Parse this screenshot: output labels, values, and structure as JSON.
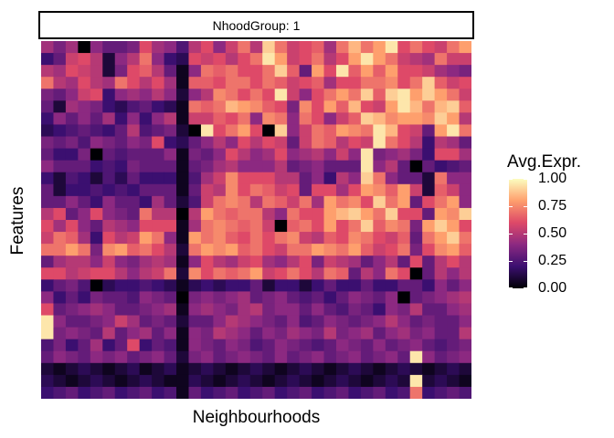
{
  "chart_data": {
    "type": "heatmap",
    "facet_label": "NhoodGroup: 1",
    "xlabel": "Neighbourhoods",
    "ylabel": "Features",
    "legend": {
      "title": "Avg.Expr.",
      "placement": "right",
      "ticks": [
        "0.00",
        "0.25",
        "0.50",
        "0.75",
        "1.00"
      ],
      "tick_values": [
        0.0,
        0.25,
        0.5,
        0.75,
        1.0
      ],
      "range": [
        0,
        1
      ]
    },
    "colorscale": [
      "#000004",
      "#3b0f70",
      "#8c2981",
      "#de4968",
      "#fe9f6d",
      "#fcfdbf"
    ],
    "n_rows": 30,
    "n_cols": 35,
    "values": [
      [
        0.45,
        0.35,
        0.45,
        0.0,
        0.4,
        0.3,
        0.3,
        0.35,
        0.6,
        0.45,
        0.4,
        0.25,
        0.5,
        0.6,
        0.4,
        0.55,
        0.7,
        0.5,
        0.9,
        0.7,
        0.55,
        0.6,
        0.65,
        0.45,
        0.7,
        0.85,
        0.7,
        0.8,
        0.95,
        0.6,
        0.7,
        0.6,
        0.55,
        0.7,
        0.8
      ],
      [
        0.2,
        0.3,
        0.55,
        0.6,
        0.5,
        0.1,
        0.4,
        0.5,
        0.7,
        0.4,
        0.2,
        0.15,
        0.6,
        0.55,
        0.6,
        0.5,
        0.6,
        0.7,
        0.95,
        0.8,
        0.55,
        0.6,
        0.7,
        0.5,
        0.6,
        0.8,
        0.95,
        0.8,
        0.7,
        0.55,
        0.5,
        0.45,
        0.7,
        0.55,
        0.55
      ],
      [
        0.5,
        0.45,
        0.6,
        0.55,
        0.5,
        0.1,
        0.35,
        0.6,
        0.65,
        0.5,
        0.3,
        0.05,
        0.4,
        0.7,
        0.65,
        0.7,
        0.6,
        0.6,
        0.7,
        0.9,
        0.65,
        0.3,
        0.8,
        0.6,
        0.95,
        0.65,
        0.8,
        0.65,
        0.8,
        0.6,
        0.6,
        0.55,
        0.45,
        0.4,
        0.35
      ],
      [
        0.7,
        0.5,
        0.45,
        0.6,
        0.5,
        0.45,
        0.7,
        0.6,
        0.5,
        0.6,
        0.45,
        0.05,
        0.65,
        0.65,
        0.6,
        0.7,
        0.7,
        0.6,
        0.7,
        0.65,
        0.55,
        0.6,
        0.65,
        0.45,
        0.6,
        0.6,
        0.7,
        0.7,
        0.75,
        0.6,
        0.7,
        0.9,
        0.65,
        0.55,
        0.6
      ],
      [
        0.35,
        0.3,
        0.4,
        0.55,
        0.6,
        0.2,
        0.4,
        0.45,
        0.4,
        0.5,
        0.4,
        0.1,
        0.4,
        0.5,
        0.75,
        0.7,
        0.6,
        0.7,
        0.6,
        0.95,
        0.55,
        0.4,
        0.6,
        0.7,
        0.8,
        0.7,
        0.9,
        0.65,
        0.9,
        0.95,
        0.8,
        0.9,
        0.8,
        0.7,
        0.55
      ],
      [
        0.3,
        0.1,
        0.45,
        0.4,
        0.35,
        0.2,
        0.15,
        0.25,
        0.3,
        0.2,
        0.15,
        0.05,
        0.7,
        0.65,
        0.7,
        0.85,
        0.8,
        0.75,
        0.65,
        0.6,
        0.35,
        0.75,
        0.6,
        0.8,
        0.65,
        0.85,
        0.6,
        0.55,
        0.8,
        0.95,
        0.85,
        0.7,
        0.85,
        0.9,
        0.65
      ],
      [
        0.2,
        0.4,
        0.3,
        0.4,
        0.3,
        0.45,
        0.2,
        0.4,
        0.2,
        0.4,
        0.5,
        0.05,
        0.55,
        0.55,
        0.65,
        0.6,
        0.7,
        0.4,
        0.75,
        0.7,
        0.4,
        0.7,
        0.6,
        0.4,
        0.55,
        0.65,
        0.9,
        0.85,
        0.75,
        0.8,
        0.8,
        0.75,
        0.9,
        0.8,
        0.5
      ],
      [
        0.15,
        0.2,
        0.25,
        0.3,
        0.25,
        0.2,
        0.3,
        0.5,
        0.25,
        0.3,
        0.35,
        0.1,
        0.0,
        0.95,
        0.6,
        0.7,
        0.8,
        0.6,
        0.0,
        0.9,
        0.4,
        0.55,
        0.7,
        0.65,
        0.8,
        0.75,
        0.7,
        0.95,
        0.85,
        0.6,
        0.55,
        0.3,
        0.8,
        0.95,
        0.7
      ],
      [
        0.35,
        0.3,
        0.35,
        0.25,
        0.4,
        0.35,
        0.3,
        0.4,
        0.35,
        0.6,
        0.2,
        0.15,
        0.3,
        0.4,
        0.5,
        0.4,
        0.6,
        0.5,
        0.6,
        0.55,
        0.3,
        0.55,
        0.7,
        0.65,
        0.5,
        0.6,
        0.55,
        0.95,
        0.7,
        0.6,
        0.5,
        0.2,
        0.5,
        0.45,
        0.3
      ],
      [
        0.3,
        0.2,
        0.2,
        0.35,
        0.0,
        0.3,
        0.25,
        0.3,
        0.3,
        0.3,
        0.4,
        0.05,
        0.35,
        0.3,
        0.4,
        0.6,
        0.5,
        0.4,
        0.45,
        0.6,
        0.4,
        0.45,
        0.5,
        0.4,
        0.55,
        0.4,
        0.95,
        0.35,
        0.4,
        0.45,
        0.35,
        0.2,
        0.6,
        0.6,
        0.45
      ],
      [
        0.4,
        0.3,
        0.3,
        0.3,
        0.2,
        0.25,
        0.2,
        0.35,
        0.3,
        0.3,
        0.3,
        0.05,
        0.3,
        0.35,
        0.45,
        0.5,
        0.4,
        0.4,
        0.4,
        0.5,
        0.3,
        0.35,
        0.4,
        0.3,
        0.3,
        0.3,
        0.95,
        0.4,
        0.5,
        0.3,
        0.0,
        0.3,
        0.2,
        0.25,
        0.3
      ],
      [
        0.2,
        0.1,
        0.25,
        0.2,
        0.1,
        0.25,
        0.15,
        0.3,
        0.2,
        0.2,
        0.2,
        0.05,
        0.25,
        0.45,
        0.55,
        0.75,
        0.6,
        0.6,
        0.6,
        0.5,
        0.5,
        0.3,
        0.4,
        0.2,
        0.5,
        0.4,
        0.9,
        0.7,
        0.4,
        0.3,
        0.3,
        0.1,
        0.7,
        0.4,
        0.4
      ],
      [
        0.3,
        0.1,
        0.2,
        0.2,
        0.25,
        0.2,
        0.25,
        0.2,
        0.3,
        0.3,
        0.3,
        0.05,
        0.3,
        0.55,
        0.5,
        0.75,
        0.6,
        0.7,
        0.65,
        0.55,
        0.6,
        0.3,
        0.6,
        0.6,
        0.45,
        0.6,
        0.8,
        0.75,
        0.65,
        0.8,
        0.55,
        0.1,
        0.65,
        0.55,
        0.4
      ],
      [
        0.3,
        0.3,
        0.4,
        0.3,
        0.2,
        0.4,
        0.3,
        0.3,
        0.2,
        0.45,
        0.3,
        0.1,
        0.25,
        0.55,
        0.7,
        0.75,
        0.7,
        0.5,
        0.7,
        0.65,
        0.55,
        0.7,
        0.45,
        0.8,
        0.7,
        0.75,
        0.6,
        0.9,
        0.7,
        0.8,
        0.3,
        0.6,
        0.7,
        0.8,
        0.4
      ],
      [
        0.5,
        0.6,
        0.3,
        0.4,
        0.6,
        0.4,
        0.35,
        0.3,
        0.7,
        0.5,
        0.5,
        0.0,
        0.5,
        0.8,
        0.7,
        0.65,
        0.7,
        0.7,
        0.5,
        0.4,
        0.7,
        0.6,
        0.6,
        0.8,
        0.85,
        0.9,
        0.8,
        0.7,
        0.9,
        0.6,
        0.6,
        0.3,
        0.8,
        0.75,
        0.9
      ],
      [
        0.6,
        0.45,
        0.6,
        0.4,
        0.3,
        0.5,
        0.45,
        0.4,
        0.6,
        0.6,
        0.6,
        0.05,
        0.45,
        0.7,
        0.75,
        0.7,
        0.65,
        0.7,
        0.55,
        0.0,
        0.65,
        0.7,
        0.6,
        0.8,
        0.6,
        0.7,
        0.9,
        0.65,
        0.75,
        0.7,
        0.35,
        0.8,
        0.9,
        0.8,
        0.6
      ],
      [
        0.55,
        0.7,
        0.65,
        0.45,
        0.2,
        0.6,
        0.5,
        0.55,
        0.8,
        0.7,
        0.4,
        0.05,
        0.8,
        0.7,
        0.75,
        0.65,
        0.6,
        0.7,
        0.6,
        0.7,
        0.75,
        0.55,
        0.5,
        0.65,
        0.6,
        0.75,
        0.7,
        0.6,
        0.55,
        0.65,
        0.3,
        0.7,
        0.8,
        0.9,
        0.7
      ],
      [
        0.7,
        0.7,
        0.8,
        0.7,
        0.35,
        0.75,
        0.8,
        0.65,
        0.7,
        0.6,
        0.5,
        0.1,
        0.7,
        0.8,
        0.75,
        0.8,
        0.65,
        0.7,
        0.6,
        0.55,
        0.7,
        0.7,
        0.8,
        0.75,
        0.7,
        0.8,
        0.65,
        0.55,
        0.6,
        0.7,
        0.35,
        0.6,
        0.75,
        0.8,
        0.65
      ],
      [
        0.3,
        0.45,
        0.5,
        0.5,
        0.4,
        0.55,
        0.4,
        0.35,
        0.45,
        0.5,
        0.45,
        0.05,
        0.4,
        0.6,
        0.5,
        0.45,
        0.55,
        0.6,
        0.45,
        0.4,
        0.5,
        0.6,
        0.35,
        0.55,
        0.5,
        0.45,
        0.3,
        0.4,
        0.5,
        0.3,
        0.6,
        0.3,
        0.5,
        0.6,
        0.5
      ],
      [
        0.6,
        0.6,
        0.5,
        0.55,
        0.6,
        0.6,
        0.5,
        0.4,
        0.5,
        0.55,
        0.7,
        0.1,
        0.75,
        0.6,
        0.7,
        0.65,
        0.7,
        0.8,
        0.55,
        0.6,
        0.7,
        0.6,
        0.5,
        0.7,
        0.65,
        0.3,
        0.5,
        0.4,
        0.7,
        0.6,
        0.0,
        0.3,
        0.5,
        0.4,
        0.5
      ],
      [
        0.2,
        0.3,
        0.35,
        0.25,
        0.0,
        0.15,
        0.2,
        0.2,
        0.25,
        0.2,
        0.15,
        0.05,
        0.15,
        0.2,
        0.15,
        0.2,
        0.2,
        0.3,
        0.1,
        0.2,
        0.2,
        0.1,
        0.2,
        0.3,
        0.2,
        0.2,
        0.3,
        0.2,
        0.2,
        0.3,
        0.3,
        0.2,
        0.4,
        0.3,
        0.4
      ],
      [
        0.4,
        0.2,
        0.3,
        0.2,
        0.35,
        0.3,
        0.3,
        0.25,
        0.4,
        0.35,
        0.3,
        0.0,
        0.35,
        0.4,
        0.35,
        0.4,
        0.45,
        0.3,
        0.35,
        0.4,
        0.3,
        0.25,
        0.3,
        0.2,
        0.3,
        0.4,
        0.35,
        0.3,
        0.4,
        0.0,
        0.3,
        0.35,
        0.4,
        0.45,
        0.5
      ],
      [
        0.6,
        0.3,
        0.35,
        0.4,
        0.45,
        0.4,
        0.3,
        0.3,
        0.35,
        0.4,
        0.45,
        0.05,
        0.4,
        0.45,
        0.4,
        0.35,
        0.45,
        0.5,
        0.35,
        0.4,
        0.4,
        0.3,
        0.4,
        0.3,
        0.25,
        0.35,
        0.3,
        0.2,
        0.4,
        0.35,
        0.5,
        0.3,
        0.3,
        0.4,
        0.45
      ],
      [
        0.95,
        0.4,
        0.3,
        0.3,
        0.35,
        0.4,
        0.55,
        0.45,
        0.3,
        0.35,
        0.3,
        0.1,
        0.3,
        0.3,
        0.4,
        0.5,
        0.45,
        0.4,
        0.35,
        0.3,
        0.4,
        0.25,
        0.3,
        0.4,
        0.35,
        0.3,
        0.35,
        0.4,
        0.5,
        0.4,
        0.3,
        0.35,
        0.3,
        0.3,
        0.4
      ],
      [
        0.95,
        0.35,
        0.4,
        0.35,
        0.3,
        0.5,
        0.3,
        0.4,
        0.45,
        0.3,
        0.4,
        0.05,
        0.4,
        0.35,
        0.5,
        0.45,
        0.4,
        0.3,
        0.4,
        0.35,
        0.45,
        0.4,
        0.35,
        0.5,
        0.35,
        0.4,
        0.45,
        0.3,
        0.4,
        0.45,
        0.35,
        0.4,
        0.3,
        0.3,
        0.5
      ],
      [
        0.25,
        0.35,
        0.2,
        0.3,
        0.45,
        0.2,
        0.3,
        0.6,
        0.2,
        0.3,
        0.25,
        0.05,
        0.4,
        0.35,
        0.3,
        0.4,
        0.35,
        0.25,
        0.3,
        0.4,
        0.35,
        0.3,
        0.25,
        0.3,
        0.4,
        0.35,
        0.3,
        0.4,
        0.3,
        0.35,
        0.4,
        0.3,
        0.25,
        0.3,
        0.35
      ],
      [
        0.3,
        0.4,
        0.35,
        0.3,
        0.4,
        0.35,
        0.4,
        0.3,
        0.35,
        0.4,
        0.3,
        0.1,
        0.35,
        0.4,
        0.3,
        0.35,
        0.4,
        0.35,
        0.3,
        0.4,
        0.3,
        0.35,
        0.4,
        0.3,
        0.35,
        0.4,
        0.3,
        0.35,
        0.4,
        0.3,
        0.95,
        0.4,
        0.3,
        0.35,
        0.4
      ],
      [
        0.1,
        0.05,
        0.1,
        0.15,
        0.1,
        0.05,
        0.1,
        0.15,
        0.05,
        0.1,
        0.15,
        0.05,
        0.1,
        0.15,
        0.1,
        0.05,
        0.1,
        0.15,
        0.1,
        0.05,
        0.1,
        0.15,
        0.1,
        0.05,
        0.1,
        0.15,
        0.1,
        0.05,
        0.1,
        0.15,
        0.1,
        0.05,
        0.1,
        0.15,
        0.1
      ],
      [
        0.15,
        0.1,
        0.05,
        0.1,
        0.15,
        0.1,
        0.05,
        0.1,
        0.15,
        0.1,
        0.05,
        0.05,
        0.15,
        0.1,
        0.05,
        0.1,
        0.15,
        0.1,
        0.05,
        0.1,
        0.15,
        0.1,
        0.05,
        0.1,
        0.15,
        0.1,
        0.05,
        0.1,
        0.15,
        0.1,
        0.95,
        0.1,
        0.15,
        0.1,
        0.05
      ],
      [
        0.2,
        0.25,
        0.3,
        0.2,
        0.25,
        0.3,
        0.2,
        0.25,
        0.3,
        0.2,
        0.25,
        0.05,
        0.3,
        0.2,
        0.25,
        0.3,
        0.2,
        0.25,
        0.3,
        0.2,
        0.25,
        0.3,
        0.2,
        0.25,
        0.3,
        0.2,
        0.25,
        0.3,
        0.2,
        0.25,
        0.7,
        0.2,
        0.25,
        0.3,
        0.25
      ]
    ]
  }
}
